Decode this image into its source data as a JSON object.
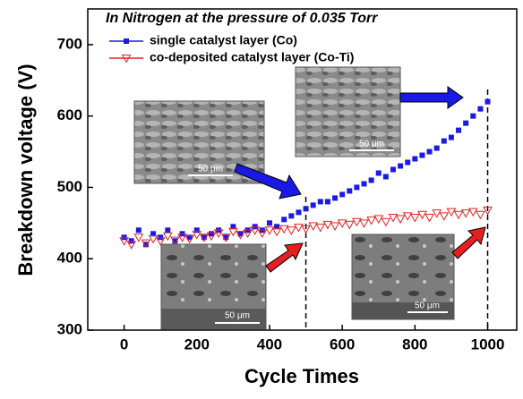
{
  "chart_data": {
    "type": "scatter",
    "title": "In Nitrogen at the pressure of 0.035 Torr",
    "x_label": "Cycle Times",
    "y_label": "Breakdown voltage (V)",
    "xlim": [
      -100,
      1080
    ],
    "ylim": [
      300,
      750
    ],
    "xticks": [
      0,
      200,
      400,
      600,
      800,
      1000
    ],
    "yticks": [
      300,
      400,
      500,
      600,
      700
    ],
    "vlines": [
      500,
      1000
    ],
    "x": [
      0,
      20,
      40,
      60,
      80,
      100,
      120,
      140,
      160,
      180,
      200,
      220,
      240,
      260,
      280,
      300,
      320,
      340,
      360,
      380,
      400,
      420,
      440,
      460,
      480,
      500,
      520,
      540,
      560,
      580,
      600,
      620,
      640,
      660,
      680,
      700,
      720,
      740,
      760,
      780,
      800,
      820,
      840,
      860,
      880,
      900,
      920,
      940,
      960,
      980,
      1000
    ],
    "series": [
      {
        "name": "single catalyst layer (Co)",
        "color": "#1a1ae6",
        "marker": "square",
        "values": [
          430,
          425,
          440,
          420,
          435,
          430,
          440,
          425,
          435,
          430,
          440,
          430,
          435,
          440,
          430,
          445,
          435,
          440,
          445,
          440,
          450,
          445,
          455,
          460,
          465,
          470,
          475,
          480,
          480,
          485,
          490,
          495,
          500,
          505,
          510,
          520,
          515,
          525,
          530,
          535,
          540,
          545,
          550,
          555,
          565,
          570,
          580,
          590,
          600,
          610,
          620
        ]
      },
      {
        "name": "co-deposited catalyst layer (Co-Ti)",
        "color": "#e62020",
        "marker": "triangle-down",
        "values": [
          425,
          420,
          430,
          422,
          428,
          425,
          432,
          426,
          430,
          428,
          434,
          430,
          432,
          436,
          430,
          438,
          434,
          436,
          440,
          436,
          440,
          438,
          442,
          440,
          444,
          442,
          446,
          444,
          448,
          446,
          450,
          448,
          452,
          450,
          454,
          456,
          452,
          458,
          456,
          460,
          458,
          462,
          458,
          464,
          460,
          466,
          462,
          464,
          466,
          462,
          468
        ]
      }
    ],
    "inset_labels": [
      "50 μm",
      "50 μm",
      "50 μm",
      "50 μm"
    ]
  }
}
